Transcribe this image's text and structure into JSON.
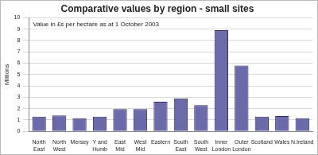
{
  "chart_data": {
    "type": "bar",
    "title": "Comparative values by region - small sites",
    "annotations": [
      "Value in £s per hectare as at 1 October 2003"
    ],
    "y_label": "Millions",
    "categories": [
      "North East",
      "North West",
      "Mersey",
      "Y and Humb",
      "East Mid",
      "West Mid",
      "Eastern",
      "South East",
      "South West",
      "Inner London",
      "Outer London",
      "Scotland",
      "Wales",
      "N.Ireland"
    ],
    "values": [
      1.3,
      1.4,
      1.15,
      1.3,
      1.95,
      1.95,
      2.6,
      2.9,
      2.3,
      8.9,
      5.8,
      1.3,
      1.35,
      1.15
    ],
    "color": "#6b6bab",
    "ylim": [
      0,
      10
    ],
    "yticks": [
      0,
      1,
      2,
      3,
      4,
      5,
      6,
      7,
      8,
      9,
      10
    ],
    "grid": true
  }
}
